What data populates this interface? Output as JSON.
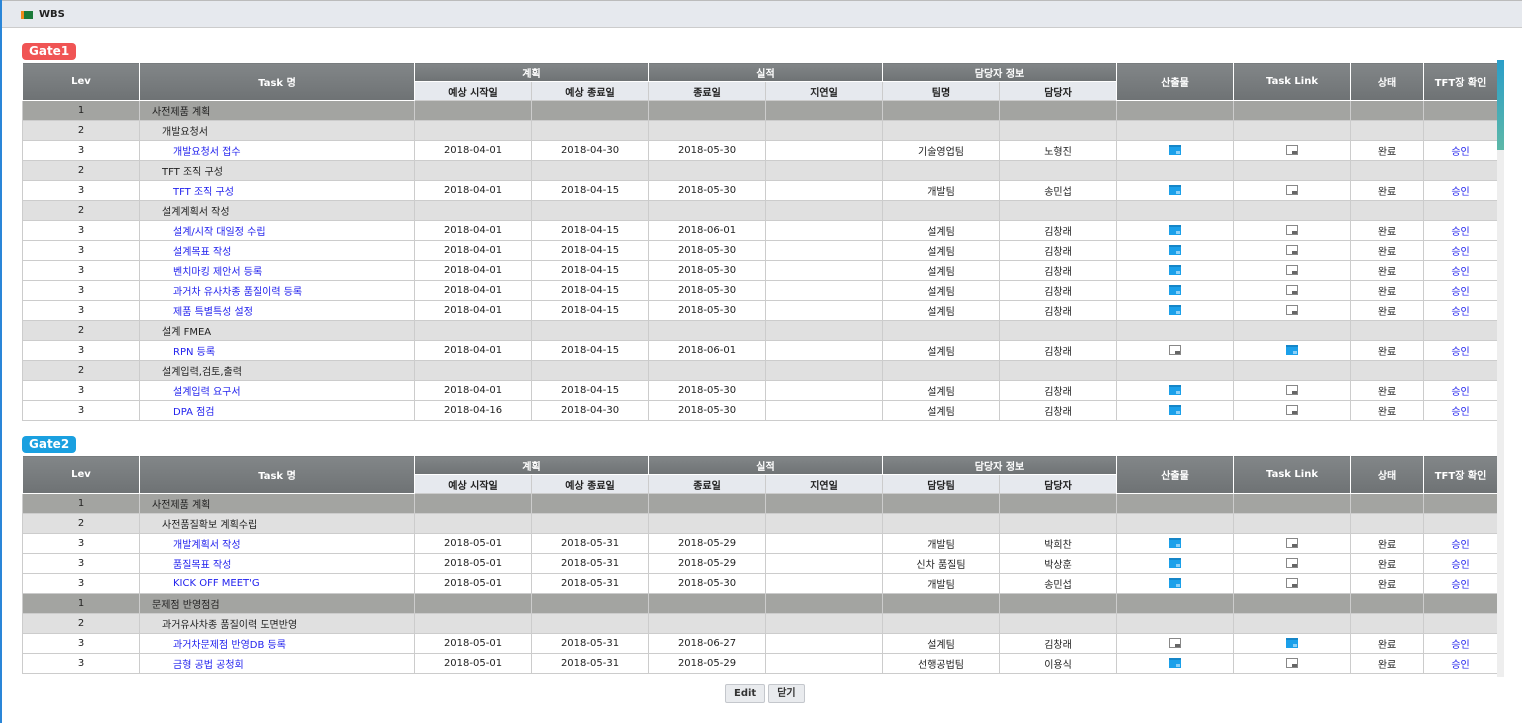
{
  "window": {
    "title": "WBS"
  },
  "headers": {
    "lev": "Lev",
    "task": "Task 명",
    "plan": "계획",
    "plan_start": "예상 시작일",
    "plan_end": "예상 종료일",
    "actual": "실적",
    "actual_end": "종료일",
    "delay": "지연일",
    "owner": "담당자 정보",
    "person": "담당자",
    "output": "산출물",
    "link": "Task Link",
    "status": "상태",
    "approve": "TFT장 확인"
  },
  "gates": [
    {
      "label": "Gate1",
      "color": "#f05454",
      "team_header": "팀명",
      "rows": [
        {
          "lev": "1",
          "task": "사전제품 계획"
        },
        {
          "lev": "2",
          "task": "개발요청서"
        },
        {
          "lev": "3",
          "task": "개발요청서 접수",
          "ps": "2018-04-01",
          "pe": "2018-04-30",
          "ae": "2018-05-30",
          "delay": "",
          "team": "기술영업팀",
          "person": "노형진",
          "output": true,
          "link": false,
          "status": "완료",
          "approve": "승인"
        },
        {
          "lev": "2",
          "task": "TFT 조직 구성"
        },
        {
          "lev": "3",
          "task": "TFT 조직 구성",
          "ps": "2018-04-01",
          "pe": "2018-04-15",
          "ae": "2018-05-30",
          "delay": "",
          "team": "개발팀",
          "person": "송민섭",
          "output": true,
          "link": false,
          "status": "완료",
          "approve": "승인"
        },
        {
          "lev": "2",
          "task": "설계계획서 작성"
        },
        {
          "lev": "3",
          "task": "설계/시작 대일정 수립",
          "ps": "2018-04-01",
          "pe": "2018-04-15",
          "ae": "2018-06-01",
          "delay": "",
          "team": "설계팀",
          "person": "김창래",
          "output": true,
          "link": false,
          "status": "완료",
          "approve": "승인"
        },
        {
          "lev": "3",
          "task": "설계목표 작성",
          "ps": "2018-04-01",
          "pe": "2018-04-15",
          "ae": "2018-05-30",
          "delay": "",
          "team": "설계팀",
          "person": "김창래",
          "output": true,
          "link": false,
          "status": "완료",
          "approve": "승인"
        },
        {
          "lev": "3",
          "task": "벤치마킹 제안서 등록",
          "ps": "2018-04-01",
          "pe": "2018-04-15",
          "ae": "2018-05-30",
          "delay": "",
          "team": "설계팀",
          "person": "김창래",
          "output": true,
          "link": false,
          "status": "완료",
          "approve": "승인"
        },
        {
          "lev": "3",
          "task": "과거차 유사차종 품질이력 등록",
          "ps": "2018-04-01",
          "pe": "2018-04-15",
          "ae": "2018-05-30",
          "delay": "",
          "team": "설계팀",
          "person": "김창래",
          "output": true,
          "link": false,
          "status": "완료",
          "approve": "승인"
        },
        {
          "lev": "3",
          "task": "제품 특별특성 설정",
          "ps": "2018-04-01",
          "pe": "2018-04-15",
          "ae": "2018-05-30",
          "delay": "",
          "team": "설계팀",
          "person": "김창래",
          "output": true,
          "link": false,
          "status": "완료",
          "approve": "승인"
        },
        {
          "lev": "2",
          "task": "설계 FMEA"
        },
        {
          "lev": "3",
          "task": "RPN 등록",
          "ps": "2018-04-01",
          "pe": "2018-04-15",
          "ae": "2018-06-01",
          "delay": "",
          "team": "설계팀",
          "person": "김창래",
          "output": false,
          "link": true,
          "status": "완료",
          "approve": "승인"
        },
        {
          "lev": "2",
          "task": "설계입력,검토,출력"
        },
        {
          "lev": "3",
          "task": "설계입력 요구서",
          "ps": "2018-04-01",
          "pe": "2018-04-15",
          "ae": "2018-05-30",
          "delay": "",
          "team": "설계팀",
          "person": "김창래",
          "output": true,
          "link": false,
          "status": "완료",
          "approve": "승인"
        },
        {
          "lev": "3",
          "task": "DPA 점검",
          "ps": "2018-04-16",
          "pe": "2018-04-30",
          "ae": "2018-05-30",
          "delay": "",
          "team": "설계팀",
          "person": "김창래",
          "output": true,
          "link": false,
          "status": "완료",
          "approve": "승인"
        }
      ]
    },
    {
      "label": "Gate2",
      "color": "#1aa0e0",
      "team_header": "담당팀",
      "rows": [
        {
          "lev": "1",
          "task": "사전제품 계획"
        },
        {
          "lev": "2",
          "task": "사전품질확보 계획수립"
        },
        {
          "lev": "3",
          "task": "개발계획서 작성",
          "ps": "2018-05-01",
          "pe": "2018-05-31",
          "ae": "2018-05-29",
          "delay": "",
          "team": "개발팀",
          "person": "박희찬",
          "output": true,
          "link": false,
          "status": "완료",
          "approve": "승인"
        },
        {
          "lev": "3",
          "task": "품질목표 작성",
          "ps": "2018-05-01",
          "pe": "2018-05-31",
          "ae": "2018-05-29",
          "delay": "",
          "team": "신차 품질팀",
          "person": "박상훈",
          "output": true,
          "link": false,
          "status": "완료",
          "approve": "승인"
        },
        {
          "lev": "3",
          "task": "KICK OFF MEET'G",
          "ps": "2018-05-01",
          "pe": "2018-05-31",
          "ae": "2018-05-30",
          "delay": "",
          "team": "개발팀",
          "person": "송민섭",
          "output": true,
          "link": false,
          "status": "완료",
          "approve": "승인"
        },
        {
          "lev": "1",
          "task": "문제점 반영점검"
        },
        {
          "lev": "2",
          "task": "과거유사차종 품질이력 도면반영"
        },
        {
          "lev": "3",
          "task": "과거차문제점 반영DB 등록",
          "ps": "2018-05-01",
          "pe": "2018-05-31",
          "ae": "2018-06-27",
          "delay": "",
          "team": "설계팀",
          "person": "김창래",
          "output": false,
          "link": true,
          "status": "완료",
          "approve": "승인"
        },
        {
          "lev": "3",
          "task": "금형 공법 공청회",
          "ps": "2018-05-01",
          "pe": "2018-05-31",
          "ae": "2018-05-29",
          "delay": "",
          "team": "선행공법팀",
          "person": "이용식",
          "output": true,
          "link": false,
          "status": "완료",
          "approve": "승인"
        }
      ]
    }
  ],
  "buttons": {
    "edit": "Edit",
    "close": "닫기"
  }
}
